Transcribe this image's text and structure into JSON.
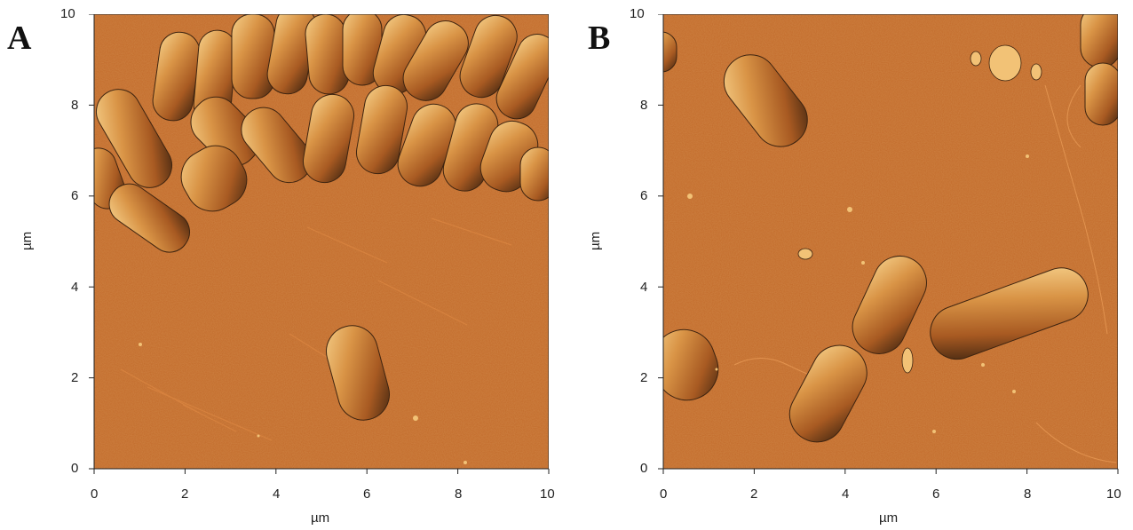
{
  "panels": [
    {
      "id": "A",
      "letter": "A",
      "xlabel": "µm",
      "ylabel": "µm",
      "x_ticks": [
        "0",
        "2",
        "4",
        "6",
        "8",
        "10"
      ],
      "y_ticks": [
        "0",
        "2",
        "4",
        "6",
        "8",
        "10"
      ]
    },
    {
      "id": "B",
      "letter": "B",
      "xlabel": "µm",
      "ylabel": "µm",
      "x_ticks": [
        "0",
        "2",
        "4",
        "6",
        "8",
        "10"
      ],
      "y_ticks": [
        "0",
        "2",
        "4",
        "6",
        "8",
        "10"
      ]
    }
  ],
  "colors": {
    "substrate": "#c26a2a",
    "highlight": "#f2c276",
    "shadow": "#4a2a12"
  }
}
